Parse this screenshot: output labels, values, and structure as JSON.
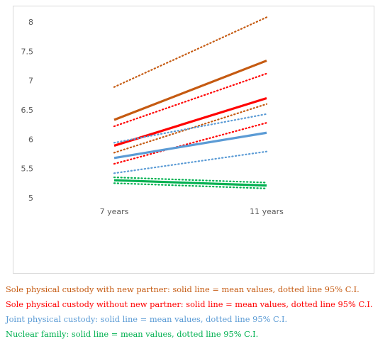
{
  "chart_data": {
    "type": "line",
    "categories": [
      "7 years",
      "11 years"
    ],
    "ylim": [
      5,
      8
    ],
    "yticks": [
      "5",
      "5.5",
      "6",
      "6.5",
      "7",
      "7.5",
      "8"
    ],
    "grid": false,
    "series": [
      {
        "name": "Sole physical custody with new partner",
        "color": "#c55a11",
        "mean": [
          6.33,
          7.34
        ],
        "ci_upper": [
          6.89,
          8.08
        ],
        "ci_lower": [
          5.77,
          6.6
        ]
      },
      {
        "name": "Sole physical custody without new partner",
        "color": "#ff0000",
        "mean": [
          5.89,
          6.7
        ],
        "ci_upper": [
          6.22,
          7.12
        ],
        "ci_lower": [
          5.58,
          6.28
        ]
      },
      {
        "name": "Joint physical custody",
        "color": "#5b9bd5",
        "mean": [
          5.68,
          6.11
        ],
        "ci_upper": [
          5.94,
          6.43
        ],
        "ci_lower": [
          5.42,
          5.79
        ]
      },
      {
        "name": "Nuclear family",
        "color": "#00b050",
        "mean": [
          5.3,
          5.21
        ],
        "ci_upper": [
          5.35,
          5.26
        ],
        "ci_lower": [
          5.25,
          5.16
        ]
      }
    ]
  },
  "legend": [
    {
      "text": "Sole physical custody with new partner: solid line = mean values, dotted line 95% C.I.",
      "color": "#c55a11"
    },
    {
      "text": "Sole physical custody without new partner: solid line = mean values, dotted line 95% C.I.",
      "color": "#ff0000"
    },
    {
      "text": "Joint physical custody: solid line = mean values, dotted line 95% C.I.",
      "color": "#5b9bd5"
    },
    {
      "text": "Nuclear family: solid line = mean values, dotted line 95% C.I.",
      "color": "#00b050"
    }
  ]
}
